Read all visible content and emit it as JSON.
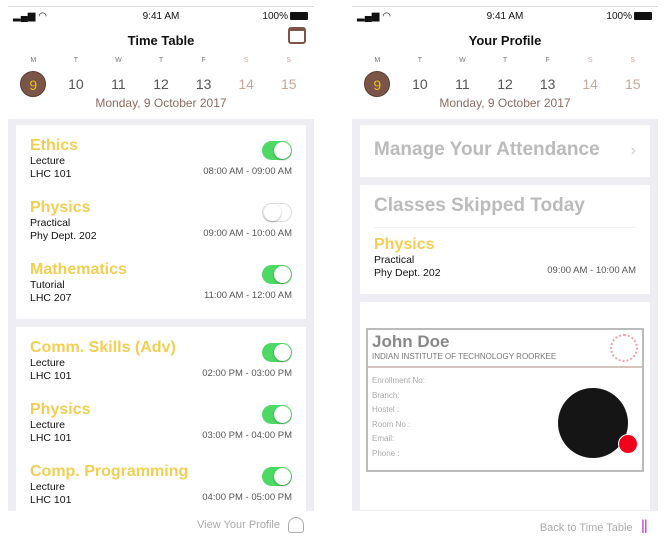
{
  "status": {
    "time": "9:41 AM",
    "battery": "100%"
  },
  "week": [
    {
      "l": "M",
      "n": "9"
    },
    {
      "l": "T",
      "n": "10"
    },
    {
      "l": "W",
      "n": "11"
    },
    {
      "l": "T",
      "n": "12"
    },
    {
      "l": "F",
      "n": "13"
    },
    {
      "l": "S",
      "n": "14"
    },
    {
      "l": "S",
      "n": "15"
    }
  ],
  "date": "Monday, 9 October 2017",
  "timetable": {
    "title": "Time Table",
    "cards": [
      [
        {
          "name": "Ethics",
          "type": "Lecture",
          "room": "LHC 101",
          "time": "08:00 AM - 09:00 AM",
          "on": true
        },
        {
          "name": "Physics",
          "type": "Practical",
          "room": "Phy Dept. 202",
          "time": "09:00 AM - 10:00 AM",
          "on": false
        },
        {
          "name": "Mathematics",
          "type": "Tutorial",
          "room": "LHC 207",
          "time": "11:00 AM - 12:00 AM",
          "on": true
        }
      ],
      [
        {
          "name": "Comm. Skills (Adv)",
          "type": "Lecture",
          "room": "LHC 101",
          "time": "02:00 PM - 03:00 PM",
          "on": true
        },
        {
          "name": "Physics",
          "type": "Lecture",
          "room": "LHC 101",
          "time": "03:00 PM - 04:00 PM",
          "on": true
        },
        {
          "name": "Comp. Programming",
          "type": "Lecture",
          "room": "LHC 101",
          "time": "04:00 PM - 05:00 PM",
          "on": true
        }
      ]
    ],
    "footer": "View Your Profile"
  },
  "profile": {
    "title": "Your Profile",
    "manage": "Manage Your Attendance",
    "skipped": "Classes Skipped Today",
    "skipped_class": {
      "name": "Physics",
      "type": "Practical",
      "room": "Phy Dept. 202",
      "time": "09:00 AM - 10:00 AM"
    },
    "id": {
      "name": "John Doe",
      "institute": "INDIAN INSTITUTE OF TECHNOLOGY ROORKEE",
      "fields": [
        "Enrollment No:",
        "Branch:",
        "Hostel :",
        "Room No :",
        "Email:",
        "Phone :"
      ]
    },
    "footer": "Back to Time Table"
  }
}
